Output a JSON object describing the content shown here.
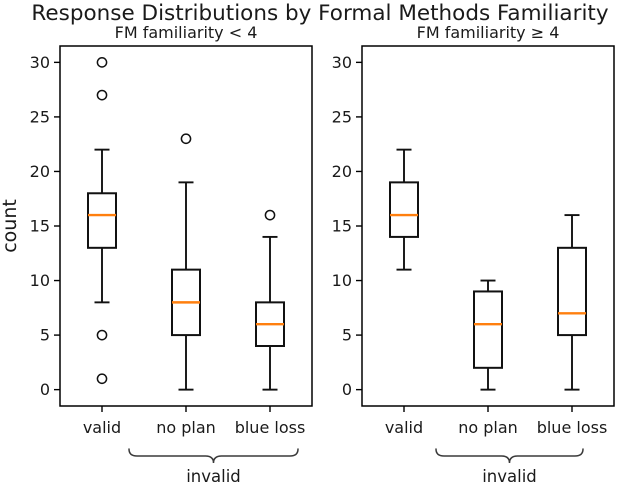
{
  "figure_title": "Response Distributions by Formal Methods Familiarity",
  "colors": {
    "line": "#111111",
    "median": "#ff7f0e",
    "frame": "#000000",
    "brace": "#3a3a3a",
    "background": "#ffffff",
    "text": "#1a1a1a"
  },
  "chart_data": [
    {
      "type": "boxplot",
      "title": "FM familiarity < 4",
      "ylabel": "count",
      "categories": [
        "valid",
        "no plan",
        "blue loss"
      ],
      "yticks": [
        0,
        5,
        10,
        15,
        20,
        25,
        30
      ],
      "ylim": [
        -1.5,
        31.5
      ],
      "grid": false,
      "series": [
        {
          "category": "valid",
          "whisker_low": 8,
          "q1": 13,
          "median": 16,
          "q3": 18,
          "whisker_high": 22,
          "outliers": [
            1,
            5,
            27,
            30
          ]
        },
        {
          "category": "no plan",
          "whisker_low": 0,
          "q1": 5,
          "median": 8,
          "q3": 11,
          "whisker_high": 19,
          "outliers": [
            23
          ]
        },
        {
          "category": "blue loss",
          "whisker_low": 0,
          "q1": 4,
          "median": 6,
          "q3": 8,
          "whisker_high": 14,
          "outliers": [
            16
          ]
        }
      ],
      "group_annotation": {
        "label": "invalid",
        "categories": [
          "no plan",
          "blue loss"
        ]
      }
    },
    {
      "type": "boxplot",
      "title": "FM familiarity ≥ 4",
      "ylabel": "",
      "categories": [
        "valid",
        "no plan",
        "blue loss"
      ],
      "yticks": [
        0,
        5,
        10,
        15,
        20,
        25,
        30
      ],
      "ylim": [
        -1.5,
        31.5
      ],
      "grid": false,
      "series": [
        {
          "category": "valid",
          "whisker_low": 11,
          "q1": 14,
          "median": 16,
          "q3": 19,
          "whisker_high": 22,
          "outliers": []
        },
        {
          "category": "no plan",
          "whisker_low": 0,
          "q1": 2,
          "median": 6,
          "q3": 9,
          "whisker_high": 10,
          "outliers": []
        },
        {
          "category": "blue loss",
          "whisker_low": 0,
          "q1": 5,
          "median": 7,
          "q3": 13,
          "whisker_high": 16,
          "outliers": []
        }
      ],
      "group_annotation": {
        "label": "invalid",
        "categories": [
          "no plan",
          "blue loss"
        ]
      }
    }
  ]
}
